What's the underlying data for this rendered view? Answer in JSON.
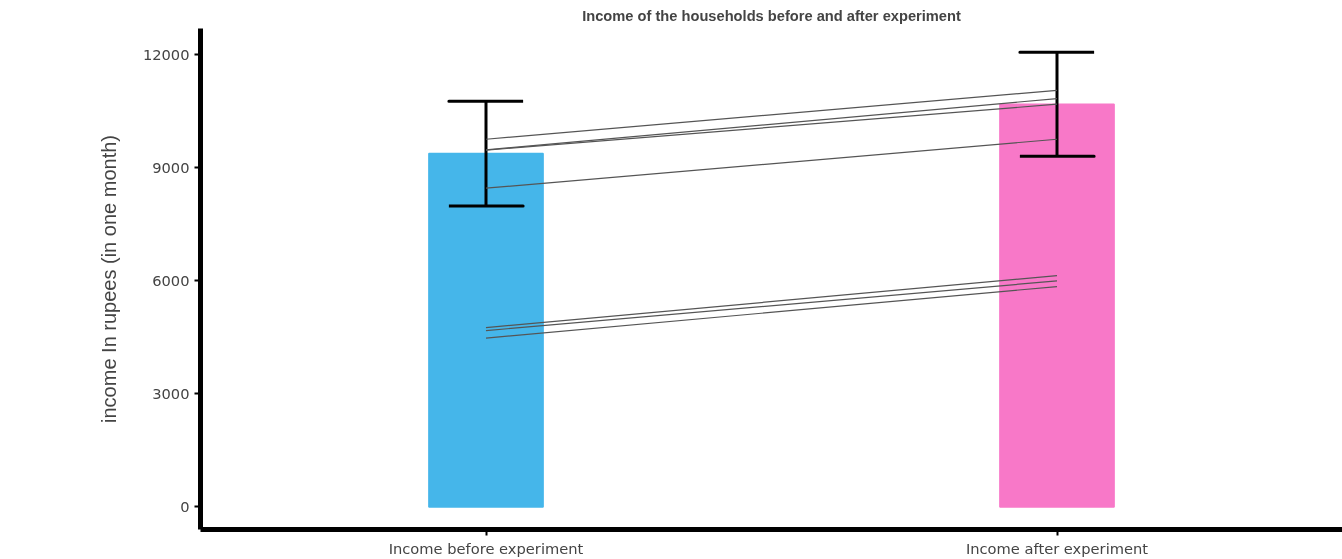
{
  "chart_data": {
    "type": "bar",
    "title": "Income of the households before and after experiment",
    "ylabel": "income In rupees (in one month)",
    "categories": [
      "Income before experiment",
      "Income after experiment"
    ],
    "ylim": [
      -600,
      12700
    ],
    "yticks": [
      0,
      3000,
      6000,
      9000,
      12000
    ],
    "grid": false,
    "series": [
      {
        "values": [
          9380,
          10690
        ],
        "colors": [
          "#45b6ea",
          "#f878c8"
        ],
        "errors": [
          1390,
          1380
        ]
      },
      {
        "type": "line",
        "color": "#555555",
        "values": [
          9760,
          11060
        ]
      },
      {
        "type": "line",
        "color": "#555555",
        "values": [
          9480,
          10840
        ]
      },
      {
        "type": "line",
        "color": "#555555",
        "values": [
          9470,
          10690
        ]
      },
      {
        "type": "line",
        "color": "#555555",
        "values": [
          8460,
          9760
        ]
      },
      {
        "type": "line",
        "color": "#555555",
        "values": [
          4760,
          6140
        ]
      },
      {
        "type": "line",
        "color": "#555555",
        "values": [
          4680,
          6000
        ]
      },
      {
        "type": "line",
        "color": "#555555",
        "values": [
          4480,
          5850
        ]
      }
    ]
  }
}
